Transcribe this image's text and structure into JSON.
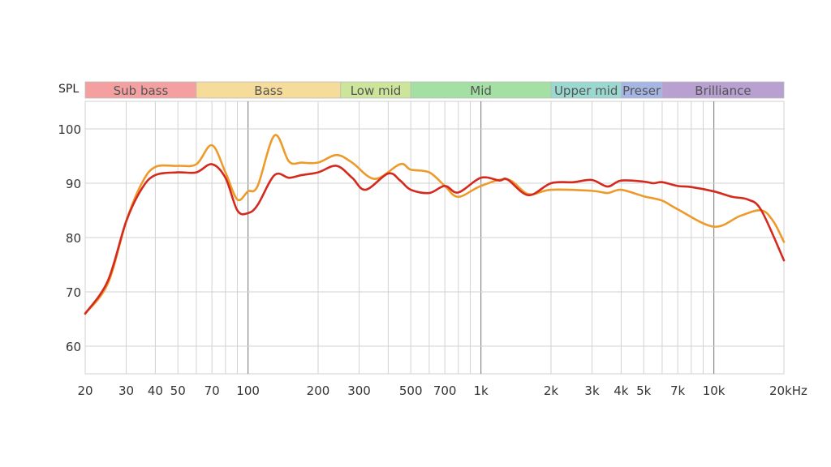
{
  "chart_data": {
    "type": "line",
    "title": "",
    "xlabel": "kHz",
    "ylabel": "SPL",
    "x_scale": "log",
    "xlim": [
      20,
      20000
    ],
    "ylim": [
      55,
      105
    ],
    "grid": true,
    "x_ticks": [
      {
        "value": 20,
        "label": "20"
      },
      {
        "value": 30,
        "label": "30"
      },
      {
        "value": 40,
        "label": "40"
      },
      {
        "value": 50,
        "label": "50"
      },
      {
        "value": 70,
        "label": "70"
      },
      {
        "value": 100,
        "label": "100"
      },
      {
        "value": 200,
        "label": "200"
      },
      {
        "value": 300,
        "label": "300"
      },
      {
        "value": 500,
        "label": "500"
      },
      {
        "value": 700,
        "label": "700"
      },
      {
        "value": 1000,
        "label": "1k"
      },
      {
        "value": 2000,
        "label": "2k"
      },
      {
        "value": 3000,
        "label": "3k"
      },
      {
        "value": 4000,
        "label": "4k"
      },
      {
        "value": 5000,
        "label": "5k"
      },
      {
        "value": 7000,
        "label": "7k"
      },
      {
        "value": 10000,
        "label": "10k"
      },
      {
        "value": 20000,
        "label": "20kHz"
      }
    ],
    "y_ticks": [
      60,
      70,
      80,
      90,
      100
    ],
    "bands": [
      {
        "label": "Sub bass",
        "from": 20,
        "to": 60,
        "color": "#f4a0a0"
      },
      {
        "label": "Bass",
        "from": 60,
        "to": 250,
        "color": "#f6dc9a"
      },
      {
        "label": "Low mid",
        "from": 250,
        "to": 500,
        "color": "#cde59a"
      },
      {
        "label": "Mid",
        "from": 500,
        "to": 2000,
        "color": "#a4e0a4"
      },
      {
        "label": "Upper mid",
        "from": 2000,
        "to": 4000,
        "color": "#9ad8d0"
      },
      {
        "label": "Preser",
        "from": 4000,
        "to": 6000,
        "color": "#a6b6e4"
      },
      {
        "label": "Brilliance",
        "from": 6000,
        "to": 20000,
        "color": "#b8a0d0"
      }
    ],
    "series": [
      {
        "name": "red",
        "color": "#d42a1e",
        "x": [
          20,
          25,
          30,
          35,
          40,
          50,
          60,
          70,
          80,
          90,
          100,
          110,
          130,
          150,
          170,
          200,
          240,
          280,
          320,
          400,
          450,
          500,
          600,
          700,
          800,
          1000,
          1200,
          1300,
          1600,
          2000,
          2500,
          3000,
          3500,
          4000,
          5000,
          5500,
          6000,
          7000,
          8000,
          10000,
          12000,
          14000,
          16000,
          20000
        ],
        "values": [
          66,
          72,
          83,
          89,
          91.5,
          92,
          92,
          93.5,
          91,
          85,
          84.5,
          86,
          91.5,
          91,
          91.5,
          92,
          93.2,
          91,
          88.8,
          91.8,
          90.5,
          88.8,
          88.2,
          89.5,
          88.3,
          91,
          90.5,
          90.7,
          87.8,
          90,
          90.2,
          90.6,
          89.4,
          90.5,
          90.3,
          90,
          90.2,
          89.5,
          89.3,
          88.5,
          87.5,
          87,
          85,
          75.8
        ]
      },
      {
        "name": "orange",
        "color": "#ee9a2a",
        "x": [
          20,
          25,
          30,
          35,
          40,
          50,
          60,
          70,
          80,
          90,
          100,
          110,
          130,
          150,
          170,
          200,
          240,
          280,
          350,
          450,
          500,
          600,
          700,
          800,
          1000,
          1300,
          1600,
          2000,
          3000,
          3500,
          4000,
          5000,
          6000,
          7000,
          10000,
          13000,
          16000,
          18000,
          20000
        ],
        "values": [
          66,
          71.5,
          83,
          90,
          93,
          93.2,
          93.5,
          97,
          92,
          87,
          88.5,
          89.5,
          98.8,
          94,
          93.8,
          93.8,
          95.2,
          93.8,
          90.8,
          93.5,
          92.5,
          92,
          89.5,
          87.5,
          89.5,
          90.7,
          88,
          88.8,
          88.6,
          88.2,
          88.8,
          87.6,
          86.8,
          85.2,
          82,
          84,
          85,
          83,
          79.2
        ]
      }
    ]
  },
  "axis": {
    "y_title": "SPL",
    "x_unit": "kHz"
  }
}
